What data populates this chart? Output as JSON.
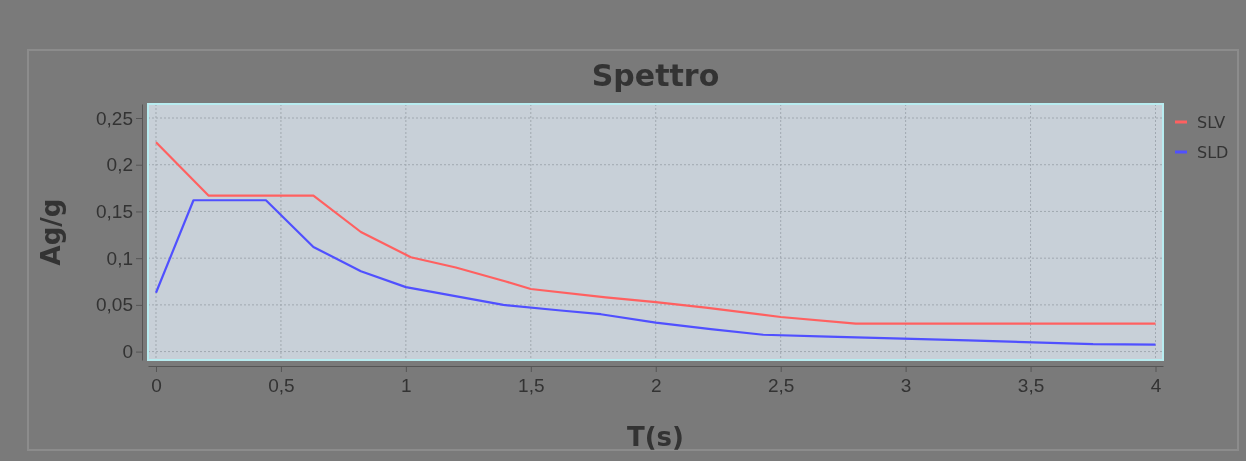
{
  "chart_data": {
    "type": "line",
    "title": "Spettro",
    "xlabel": "T(s)",
    "ylabel": "Ag/g",
    "xlim": [
      -0.032,
      4.03
    ],
    "ylim": [
      -0.009,
      0.265
    ],
    "xticks": [
      0,
      {
        "value": 0.5,
        "label": "0,5"
      },
      1,
      {
        "value": 1.5,
        "label": "1,5"
      },
      2,
      {
        "value": 2.5,
        "label": "2,5"
      },
      3,
      {
        "value": 3.5,
        "label": "3,5"
      },
      4
    ],
    "yticks": [
      0,
      {
        "value": 0.05,
        "label": "0,05"
      },
      {
        "value": 0.1,
        "label": "0,1"
      },
      {
        "value": 0.15,
        "label": "0,15"
      },
      {
        "value": 0.2,
        "label": "0,2"
      },
      {
        "value": 0.25,
        "label": "0,25"
      }
    ],
    "grid": true,
    "legend": "top right",
    "line_style": "solid",
    "marker": "none",
    "series": [
      {
        "name": "SLV",
        "color": "#ff6060",
        "x": [
          0,
          0.21,
          0.63,
          0.82,
          1.02,
          1.2,
          1.4,
          1.5,
          1.8,
          2,
          2.2,
          2.5,
          2.8,
          4
        ],
        "values": [
          0.224,
          0.167,
          0.167,
          0.128,
          0.101,
          0.09,
          0.075,
          0.067,
          0.058,
          0.053,
          0.047,
          0.037,
          0.03,
          0.03
        ]
      },
      {
        "name": "SLD",
        "color": "#5050ff",
        "x": [
          0,
          0.15,
          0.44,
          0.63,
          0.82,
          1.0,
          1.39,
          1.62,
          1.78,
          2.0,
          2.22,
          2.43,
          2.69,
          3.25,
          3.75,
          4
        ],
        "values": [
          0.063,
          0.162,
          0.162,
          0.112,
          0.086,
          0.069,
          0.05,
          0.044,
          0.04,
          0.031,
          0.024,
          0.018,
          0.016,
          0.012,
          0.008,
          0.0075
        ]
      }
    ]
  }
}
